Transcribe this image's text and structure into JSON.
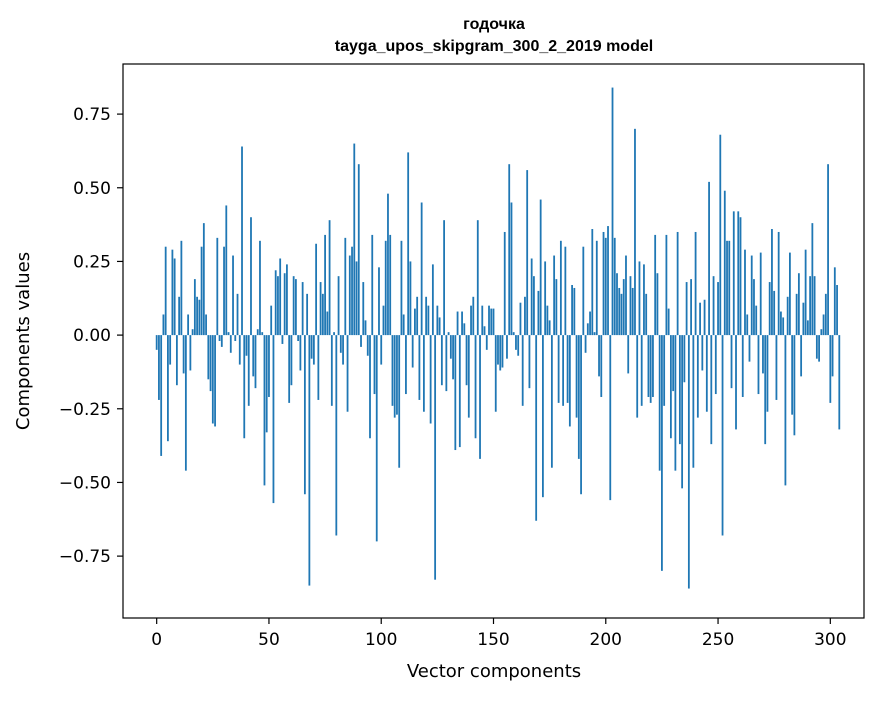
{
  "chart_data": {
    "type": "bar",
    "title": "годочка",
    "subtitle": "tayga_upos_skipgram_300_2_2019 model",
    "xlabel": "Vector components",
    "ylabel": "Components values",
    "xlim": [
      -15,
      315
    ],
    "ylim": [
      -0.96,
      0.92
    ],
    "x_ticks": [
      0,
      50,
      100,
      150,
      200,
      250,
      300
    ],
    "x_tick_labels": [
      "0",
      "50",
      "100",
      "150",
      "200",
      "250",
      "300"
    ],
    "y_ticks": [
      -0.75,
      -0.5,
      -0.25,
      0.0,
      0.25,
      0.5,
      0.75
    ],
    "y_tick_labels": [
      "−0.75",
      "−0.50",
      "−0.25",
      "0.00",
      "0.25",
      "0.50",
      "0.75"
    ],
    "grid": false,
    "bar_color": "#1f77b4",
    "values": [
      -0.05,
      -0.22,
      -0.41,
      0.07,
      0.3,
      -0.36,
      -0.1,
      0.29,
      0.26,
      -0.17,
      0.13,
      0.32,
      -0.13,
      -0.46,
      0.07,
      -0.12,
      0.02,
      0.19,
      0.13,
      0.12,
      0.3,
      0.38,
      0.07,
      -0.15,
      -0.19,
      -0.3,
      -0.31,
      0.33,
      -0.02,
      -0.04,
      0.3,
      0.44,
      0.01,
      -0.06,
      0.27,
      -0.02,
      0.14,
      -0.1,
      0.64,
      -0.35,
      -0.07,
      -0.24,
      0.4,
      -0.14,
      -0.18,
      0.02,
      0.32,
      0.01,
      -0.51,
      -0.33,
      -0.21,
      0.1,
      -0.57,
      0.22,
      0.2,
      0.26,
      -0.03,
      0.21,
      0.24,
      -0.23,
      -0.17,
      0.2,
      0.19,
      -0.02,
      -0.12,
      0.18,
      -0.54,
      0.14,
      -0.85,
      -0.08,
      -0.1,
      0.31,
      -0.22,
      0.18,
      0.14,
      0.34,
      0.08,
      0.39,
      -0.24,
      0.01,
      -0.68,
      0.2,
      -0.06,
      -0.1,
      0.33,
      -0.26,
      0.27,
      0.3,
      0.65,
      0.25,
      0.58,
      -0.04,
      0.18,
      0.05,
      -0.07,
      -0.35,
      0.34,
      -0.2,
      -0.7,
      0.23,
      -0.1,
      0.1,
      0.32,
      0.48,
      0.34,
      -0.24,
      -0.28,
      -0.27,
      -0.45,
      0.32,
      0.07,
      -0.2,
      0.62,
      0.25,
      -0.11,
      0.09,
      0.13,
      -0.22,
      0.45,
      -0.26,
      0.13,
      0.1,
      -0.3,
      0.24,
      -0.83,
      0.1,
      0.06,
      -0.17,
      0.39,
      -0.19,
      0.01,
      -0.08,
      -0.15,
      -0.39,
      0.08,
      -0.38,
      0.08,
      0.04,
      -0.17,
      -0.28,
      0.1,
      0.13,
      -0.35,
      0.39,
      -0.42,
      0.1,
      0.03,
      -0.05,
      0.1,
      0.09,
      0.09,
      -0.26,
      -0.1,
      -0.12,
      -0.11,
      0.35,
      -0.08,
      0.58,
      0.45,
      0.01,
      -0.05,
      -0.07,
      0.11,
      -0.24,
      0.13,
      0.56,
      -0.18,
      0.26,
      0.2,
      -0.63,
      0.15,
      0.46,
      -0.55,
      0.25,
      0.1,
      0.05,
      -0.45,
      0.27,
      0.19,
      -0.23,
      0.32,
      -0.24,
      0.3,
      -0.23,
      -0.31,
      0.17,
      0.16,
      -0.28,
      -0.42,
      -0.54,
      0.3,
      -0.06,
      0.04,
      0.08,
      0.36,
      0.01,
      0.32,
      -0.14,
      -0.21,
      0.35,
      0.33,
      0.37,
      -0.56,
      0.84,
      0.33,
      0.21,
      0.16,
      0.14,
      0.19,
      0.27,
      -0.13,
      0.2,
      0.16,
      0.7,
      -0.28,
      0.25,
      -0.24,
      0.24,
      0.14,
      -0.21,
      -0.23,
      -0.21,
      0.34,
      0.21,
      -0.46,
      -0.8,
      -0.24,
      0.34,
      0.09,
      -0.35,
      -0.19,
      -0.46,
      0.35,
      -0.37,
      -0.52,
      -0.16,
      0.18,
      -0.86,
      0.19,
      -0.45,
      0.35,
      -0.28,
      0.11,
      -0.12,
      0.12,
      -0.26,
      0.52,
      -0.37,
      0.2,
      -0.2,
      0.18,
      0.68,
      -0.68,
      0.49,
      0.32,
      0.32,
      -0.18,
      0.42,
      -0.32,
      0.42,
      0.4,
      -0.21,
      0.29,
      0.07,
      -0.09,
      0.27,
      0.19,
      0.1,
      -0.2,
      0.28,
      -0.13,
      -0.37,
      -0.26,
      0.18,
      0.36,
      0.15,
      -0.22,
      0.35,
      0.08,
      0.06,
      -0.51,
      0.13,
      0.28,
      -0.27,
      -0.34,
      0.14,
      0.21,
      -0.14,
      0.11,
      0.29,
      0.05,
      0.2,
      0.38,
      0.2,
      -0.08,
      -0.09,
      0.02,
      0.07,
      0.14,
      0.58,
      -0.23,
      -0.14,
      0.23,
      0.17,
      -0.32
    ]
  }
}
